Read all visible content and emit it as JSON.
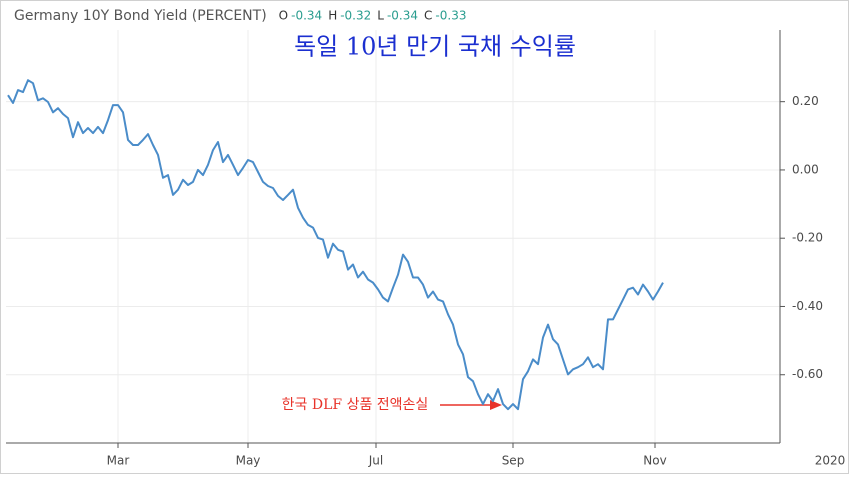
{
  "chart_data": {
    "type": "line",
    "title": "Germany 10Y Bond Yield (PERCENT)",
    "ohlc": [
      {
        "label": "O",
        "value": "-0.34"
      },
      {
        "label": "H",
        "value": "-0.32"
      },
      {
        "label": "L",
        "value": "-0.34"
      },
      {
        "label": "C",
        "value": "-0.33"
      }
    ],
    "subtitle": "독일 10년 만기 국채 수익률",
    "annotation": "한국 DLF 상품 전액손실",
    "color": "#4a8cc9",
    "values": [
      0.219,
      0.196,
      0.234,
      0.228,
      0.263,
      0.254,
      0.204,
      0.21,
      0.199,
      0.169,
      0.181,
      0.164,
      0.152,
      0.096,
      0.14,
      0.108,
      0.123,
      0.108,
      0.126,
      0.108,
      0.146,
      0.19,
      0.19,
      0.169,
      0.088,
      0.073,
      0.073,
      0.088,
      0.105,
      0.073,
      0.044,
      -0.023,
      -0.015,
      -0.073,
      -0.058,
      -0.029,
      -0.044,
      -0.035,
      0.0,
      -0.015,
      0.015,
      0.058,
      0.082,
      0.023,
      0.044,
      0.015,
      -0.015,
      0.006,
      0.029,
      0.023,
      -0.006,
      -0.035,
      -0.047,
      -0.053,
      -0.076,
      -0.088,
      -0.073,
      -0.058,
      -0.111,
      -0.14,
      -0.161,
      -0.169,
      -0.199,
      -0.204,
      -0.257,
      -0.216,
      -0.234,
      -0.239,
      -0.292,
      -0.277,
      -0.315,
      -0.298,
      -0.321,
      -0.33,
      -0.35,
      -0.374,
      -0.385,
      -0.345,
      -0.307,
      -0.248,
      -0.269,
      -0.315,
      -0.315,
      -0.336,
      -0.374,
      -0.356,
      -0.38,
      -0.385,
      -0.423,
      -0.453,
      -0.511,
      -0.54,
      -0.607,
      -0.619,
      -0.657,
      -0.686,
      -0.657,
      -0.677,
      -0.642,
      -0.686,
      -0.701,
      -0.686,
      -0.701,
      -0.613,
      -0.59,
      -0.555,
      -0.569,
      -0.491,
      -0.453,
      -0.496,
      -0.511,
      -0.555,
      -0.599,
      -0.584,
      -0.578,
      -0.569,
      -0.549,
      -0.578,
      -0.569,
      -0.584,
      -0.438,
      -0.438,
      -0.409,
      -0.38,
      -0.35,
      -0.345,
      -0.365,
      -0.336,
      -0.356,
      -0.38,
      -0.356,
      -0.33
    ],
    "xlim": [
      -0.4,
      154.4
    ],
    "xticks": [
      {
        "value": 22,
        "label": "Mar"
      },
      {
        "value": 48,
        "label": "May"
      },
      {
        "value": 73.6,
        "label": "Jul"
      },
      {
        "value": 101,
        "label": "Sep"
      },
      {
        "value": 129.4,
        "label": "Nov"
      },
      {
        "value": 164.4,
        "label": "2020"
      }
    ],
    "ylim": [
      -0.8,
      0.41
    ],
    "yticks": [
      {
        "value": 0.2,
        "label": "0.20"
      },
      {
        "value": 0,
        "label": "0.00"
      },
      {
        "value": -0.2,
        "label": "-0.20"
      },
      {
        "value": -0.4,
        "label": "-0.40"
      },
      {
        "value": -0.6,
        "label": "-0.60"
      }
    ],
    "grid": true
  }
}
